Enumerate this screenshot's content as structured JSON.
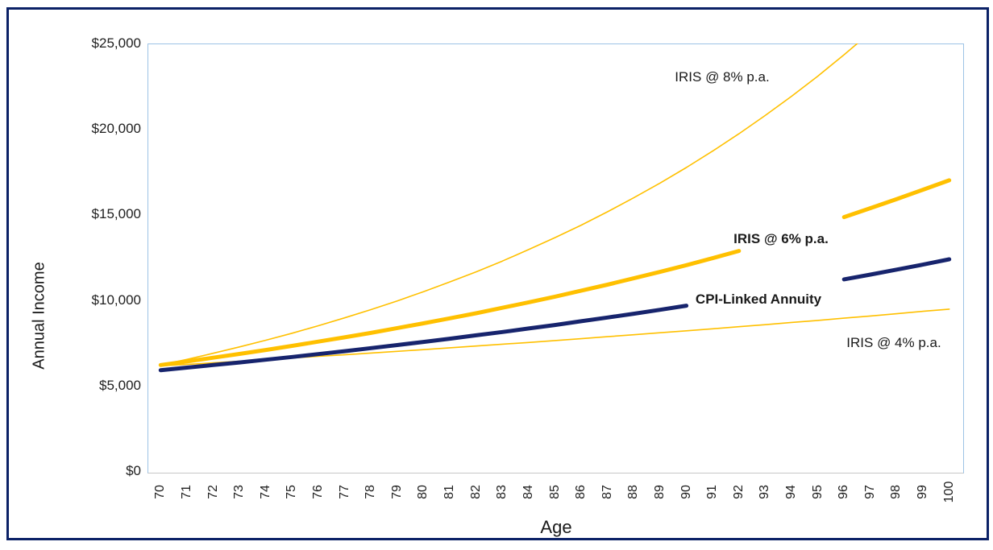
{
  "colors": {
    "frame_border": "#0b2166",
    "plot_border": "#9dc3e6",
    "axis_line": "#c6c6c6",
    "gold": "#ffc000",
    "navy": "#17246d"
  },
  "chart_data": {
    "type": "line",
    "title": "",
    "xlabel": "Age",
    "ylabel": "Annual Income",
    "xlim": [
      69.5,
      100.5
    ],
    "ylim": [
      0,
      25000
    ],
    "grid": false,
    "legend": "inline-annotations",
    "x": [
      70,
      71,
      72,
      73,
      74,
      75,
      76,
      77,
      78,
      79,
      80,
      81,
      82,
      83,
      84,
      85,
      86,
      87,
      88,
      89,
      90,
      91,
      92,
      93,
      94,
      95,
      96,
      97,
      98,
      99,
      100
    ],
    "y_ticks": [
      {
        "value": 0,
        "label": "$0"
      },
      {
        "value": 5000,
        "label": "$5,000"
      },
      {
        "value": 10000,
        "label": "$10,000"
      },
      {
        "value": 15000,
        "label": "$15,000"
      },
      {
        "value": 20000,
        "label": "$20,000"
      },
      {
        "value": 25000,
        "label": "$25,000"
      }
    ],
    "series": [
      {
        "name": "IRIS @ 8% p.a.",
        "color": "#ffc000",
        "weight": "thin",
        "values": [
          6200,
          6530,
          6890,
          7260,
          7650,
          8060,
          8500,
          8960,
          9440,
          9950,
          10490,
          11060,
          11650,
          12280,
          12950,
          13650,
          14380,
          15160,
          15980,
          16840,
          17750,
          18710,
          19720,
          20790,
          21910,
          23090,
          24340,
          25650,
          null,
          null,
          null
        ]
      },
      {
        "name": "IRIS @ 4% p.a.",
        "color": "#ffc000",
        "weight": "thin",
        "values": [
          6150,
          6240,
          6330,
          6420,
          6510,
          6610,
          6710,
          6800,
          6900,
          7000,
          7100,
          7210,
          7310,
          7420,
          7520,
          7630,
          7740,
          7860,
          7970,
          8090,
          8200,
          8320,
          8440,
          8560,
          8690,
          8810,
          8940,
          9070,
          9200,
          9340,
          9470
        ]
      },
      {
        "name": "CPI-Linked Annuity",
        "color": "#17246d",
        "weight": "thick",
        "values": [
          5900,
          6050,
          6200,
          6350,
          6510,
          6670,
          6840,
          7010,
          7190,
          7370,
          7550,
          7740,
          7940,
          8130,
          8340,
          8540,
          8760,
          8980,
          9200,
          9430,
          9670,
          null,
          null,
          null,
          null,
          null,
          11210,
          11490,
          11780,
          12070,
          12380
        ]
      },
      {
        "name": "IRIS @ 6% p.a.",
        "color": "#ffc000",
        "weight": "thick",
        "values": [
          6200,
          6410,
          6630,
          6850,
          7080,
          7320,
          7570,
          7820,
          8080,
          8360,
          8640,
          8930,
          9230,
          9550,
          9870,
          10200,
          10550,
          10900,
          11270,
          11650,
          12040,
          12450,
          12870,
          null,
          null,
          null,
          14850,
          15370,
          15900,
          16450,
          17000
        ]
      }
    ],
    "annotations": [
      {
        "text": "IRIS @ 8% p.a.",
        "bold": false
      },
      {
        "text": "IRIS @ 6% p.a.",
        "bold": true
      },
      {
        "text": "CPI-Linked Annuity",
        "bold": true
      },
      {
        "text": "IRIS @ 4% p.a.",
        "bold": false
      }
    ]
  }
}
